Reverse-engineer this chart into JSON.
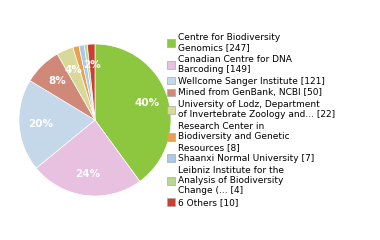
{
  "labels": [
    "Centre for Biodiversity\nGenomics [247]",
    "Canadian Centre for DNA\nBarcoding [149]",
    "Wellcome Sanger Institute [121]",
    "Mined from GenBank, NCBI [50]",
    "University of Lodz, Department\nof Invertebrate Zoology and... [22]",
    "Research Center in\nBiodiversity and Genetic\nResources [8]",
    "Shaanxi Normal University [7]",
    "Leibniz Institute for the\nAnalysis of Biodiversity\nChange (... [4]",
    "6 Others [10]"
  ],
  "values": [
    247,
    149,
    121,
    50,
    22,
    8,
    7,
    4,
    10
  ],
  "colors": [
    "#8dc63f",
    "#e8c0e0",
    "#c5d8ea",
    "#d08878",
    "#d8d898",
    "#e8a050",
    "#aac8e8",
    "#b8d890",
    "#c84030"
  ],
  "startangle": 90,
  "background_color": "#ffffff",
  "fontsize": 6.5,
  "pct_fontsize": 7.5
}
